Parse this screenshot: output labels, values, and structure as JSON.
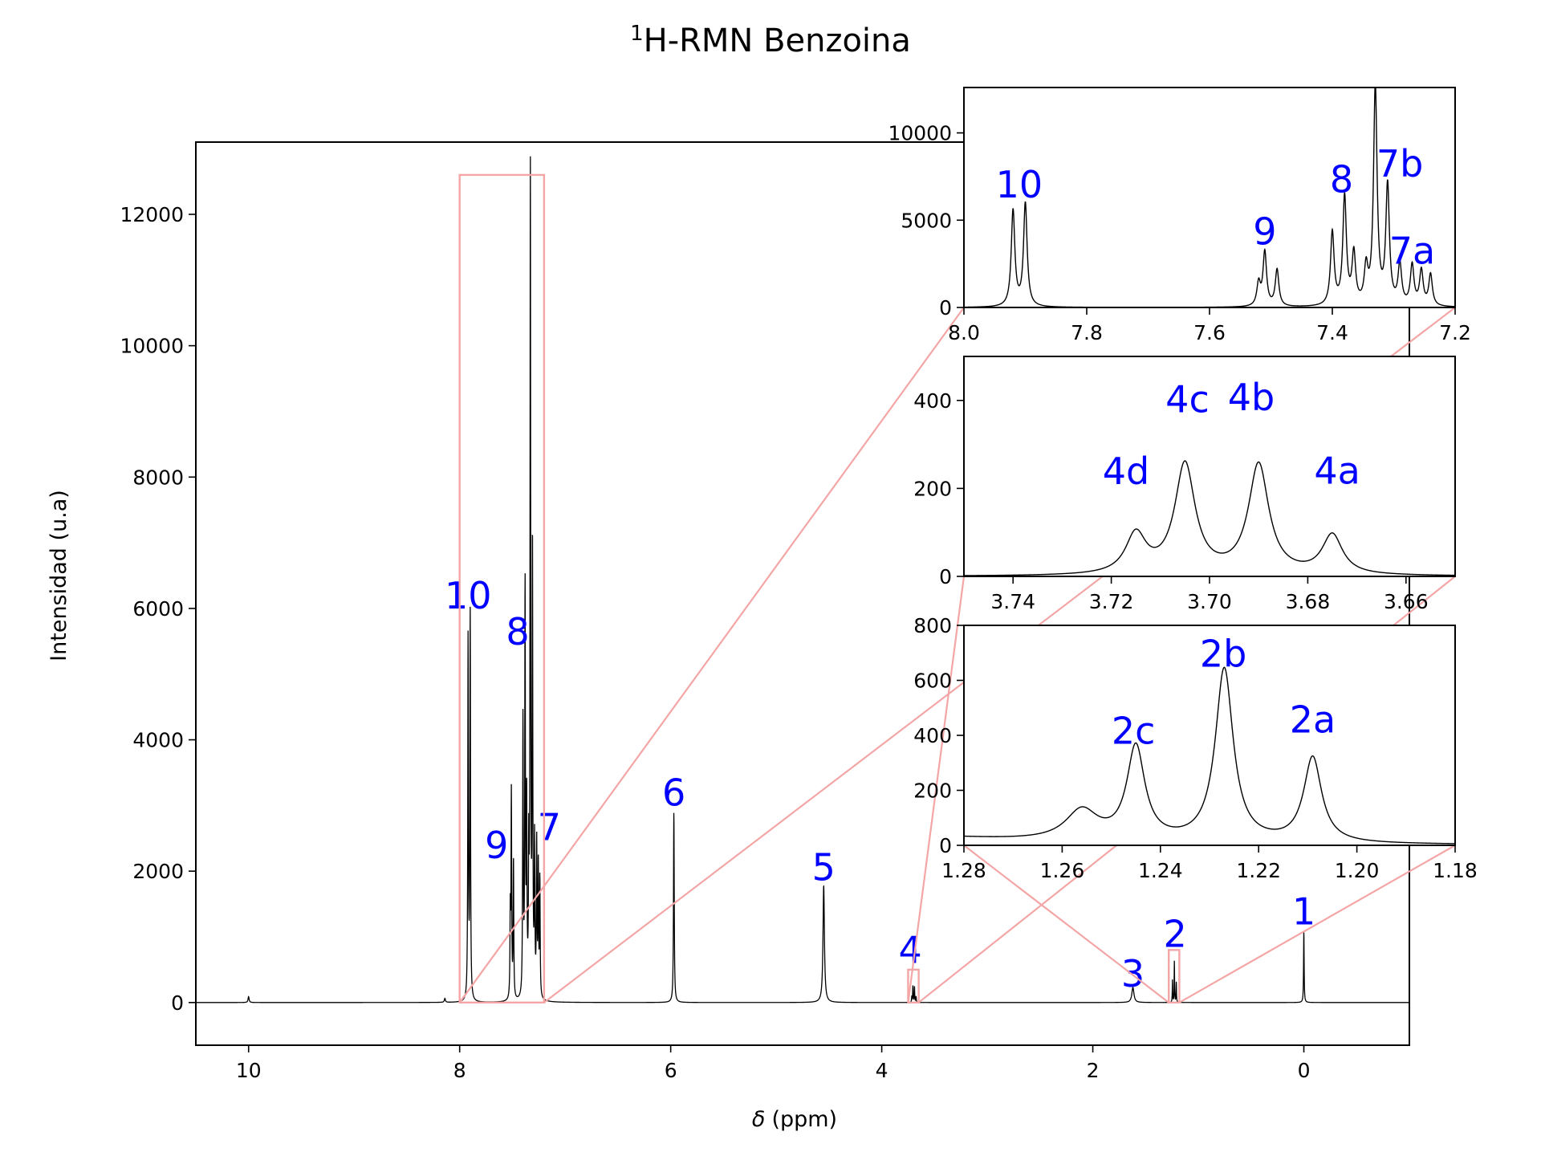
{
  "chart_data": [
    {
      "panel": "main",
      "type": "line",
      "title": "H-RMN Benzoina",
      "title_superscript": "1",
      "xlabel": "(ppm)",
      "xlabel_symbol": "δ",
      "ylabel": "Intensidad (u.a)",
      "xlim": [
        10.5,
        -1.0
      ],
      "ylim": [
        -650,
        13100
      ],
      "xaxis_inverted": true,
      "xticks": [
        10,
        8,
        6,
        4,
        2,
        0
      ],
      "yticks": [
        0,
        2000,
        4000,
        6000,
        8000,
        10000,
        12000
      ],
      "color": "#000000",
      "peaks": [
        {
          "ppm": 10.0,
          "height": 90,
          "width": 0.006
        },
        {
          "ppm": 8.14,
          "height": 60,
          "width": 0.006
        },
        {
          "ppm": 7.92,
          "height": 5500,
          "width": 0.0035
        },
        {
          "ppm": 7.9,
          "height": 5900,
          "width": 0.0035
        },
        {
          "ppm": 7.52,
          "height": 1300,
          "width": 0.0035
        },
        {
          "ppm": 7.51,
          "height": 3100,
          "width": 0.0035
        },
        {
          "ppm": 7.49,
          "height": 2100,
          "width": 0.0035
        },
        {
          "ppm": 7.4,
          "height": 4200,
          "width": 0.0035
        },
        {
          "ppm": 7.38,
          "height": 6200,
          "width": 0.0035
        },
        {
          "ppm": 7.365,
          "height": 2900,
          "width": 0.0035
        },
        {
          "ppm": 7.345,
          "height": 2000,
          "width": 0.0035
        },
        {
          "ppm": 7.33,
          "height": 12500,
          "width": 0.0035
        },
        {
          "ppm": 7.31,
          "height": 6800,
          "width": 0.0035
        },
        {
          "ppm": 7.29,
          "height": 2300,
          "width": 0.0035
        },
        {
          "ppm": 7.27,
          "height": 2300,
          "width": 0.0035
        },
        {
          "ppm": 7.255,
          "height": 2000,
          "width": 0.0035
        },
        {
          "ppm": 7.24,
          "height": 1800,
          "width": 0.0035
        },
        {
          "ppm": 5.97,
          "height": 2900,
          "width": 0.004
        },
        {
          "ppm": 4.55,
          "height": 1780,
          "width": 0.008
        },
        {
          "ppm": 3.715,
          "height": 90,
          "width": 0.0025
        },
        {
          "ppm": 3.705,
          "height": 250,
          "width": 0.0025
        },
        {
          "ppm": 3.69,
          "height": 250,
          "width": 0.0025
        },
        {
          "ppm": 3.675,
          "height": 90,
          "width": 0.0025
        },
        {
          "ppm": 1.62,
          "height": 230,
          "width": 0.012
        },
        {
          "ppm": 1.245,
          "height": 340,
          "width": 0.0022
        },
        {
          "ppm": 1.227,
          "height": 630,
          "width": 0.0022
        },
        {
          "ppm": 1.209,
          "height": 310,
          "width": 0.0022
        },
        {
          "ppm": 0.0,
          "height": 1100,
          "width": 0.003
        }
      ],
      "annotations": [
        {
          "text": "10",
          "x": 7.92,
          "y": 6000
        },
        {
          "text": "9",
          "x": 7.65,
          "y": 2200
        },
        {
          "text": "8",
          "x": 7.45,
          "y": 5450
        },
        {
          "text": "7",
          "x": 7.15,
          "y": 2470
        },
        {
          "text": "6",
          "x": 5.97,
          "y": 3000
        },
        {
          "text": "5",
          "x": 4.55,
          "y": 1860
        },
        {
          "text": "4",
          "x": 3.73,
          "y": 600
        },
        {
          "text": "3",
          "x": 1.62,
          "y": 240
        },
        {
          "text": "2",
          "x": 1.22,
          "y": 850
        },
        {
          "text": "1",
          "x": 0.0,
          "y": 1190
        }
      ],
      "zoom_regions": [
        {
          "x": [
            8.0,
            7.2
          ],
          "y": [
            0,
            12600
          ]
        },
        {
          "x": [
            3.75,
            3.65
          ],
          "y": [
            0,
            500
          ]
        },
        {
          "x": [
            1.28,
            1.18
          ],
          "y": [
            0,
            800
          ]
        }
      ]
    },
    {
      "panel": "inset-1",
      "type": "line",
      "xlim": [
        8.0,
        7.2
      ],
      "ylim": [
        0,
        12600
      ],
      "xticks": [
        8.0,
        7.8,
        7.6,
        7.4,
        7.2
      ],
      "xtick_labels": [
        "8.0",
        "7.8",
        "7.6",
        "7.4",
        "7.2"
      ],
      "yticks": [
        0,
        5000,
        10000
      ],
      "peak_width": 0.0035,
      "annotations": [
        {
          "text": "10",
          "x": 7.91,
          "y": 6300
        },
        {
          "text": "9",
          "x": 7.51,
          "y": 3600
        },
        {
          "text": "8",
          "x": 7.385,
          "y": 6600
        },
        {
          "text": "7b",
          "x": 7.29,
          "y": 7500
        },
        {
          "text": "7a",
          "x": 7.27,
          "y": 2500
        }
      ]
    },
    {
      "panel": "inset-2",
      "type": "line",
      "xlim": [
        3.75,
        3.65
      ],
      "ylim": [
        0,
        500
      ],
      "xticks": [
        3.74,
        3.72,
        3.7,
        3.68,
        3.66
      ],
      "xtick_labels": [
        "3.74",
        "3.72",
        "3.70",
        "3.68",
        "3.66"
      ],
      "yticks": [
        0,
        200,
        400
      ],
      "peak_width": 0.0025,
      "annotations": [
        {
          "text": "4d",
          "x": 3.717,
          "y": 210
        },
        {
          "text": "4c",
          "x": 3.7045,
          "y": 373
        },
        {
          "text": "4b",
          "x": 3.6915,
          "y": 378
        },
        {
          "text": "4a",
          "x": 3.674,
          "y": 211
        }
      ]
    },
    {
      "panel": "inset-3",
      "type": "line",
      "xlim": [
        1.28,
        1.18
      ],
      "ylim": [
        0,
        800
      ],
      "xticks": [
        1.28,
        1.26,
        1.24,
        1.22,
        1.2,
        1.18
      ],
      "xtick_labels": [
        "1.28",
        "1.26",
        "1.24",
        "1.22",
        "1.20",
        "1.18"
      ],
      "yticks": [
        0,
        200,
        400,
        600,
        800
      ],
      "extra_peaks": [
        {
          "ppm": 1.256,
          "height": 110,
          "width": 0.004
        },
        {
          "ppm": 1.3,
          "height": 40,
          "width": 0.03
        }
      ],
      "peak_width": 0.0022,
      "annotations": [
        {
          "text": "2c",
          "x": 1.2455,
          "y": 370
        },
        {
          "text": "2b",
          "x": 1.2272,
          "y": 650
        },
        {
          "text": "2a",
          "x": 1.209,
          "y": 410
        }
      ]
    }
  ]
}
